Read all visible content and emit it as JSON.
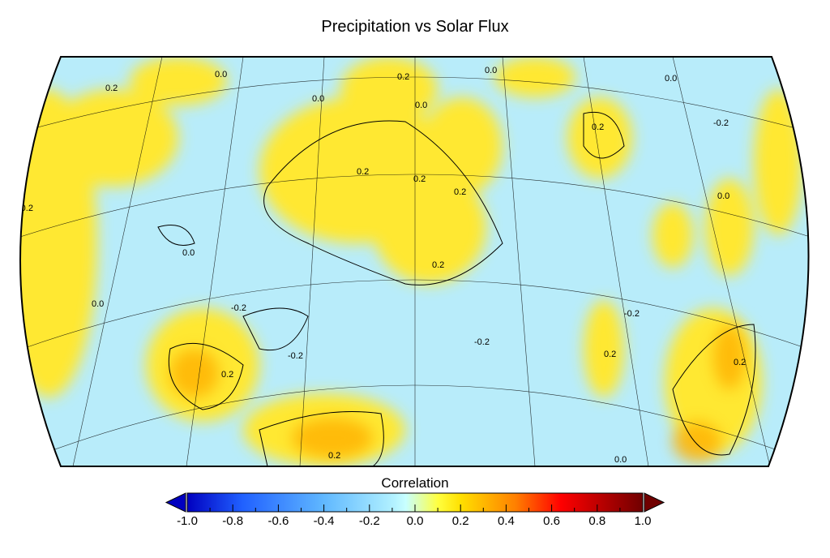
{
  "title": "Precipitation vs Solar Flux",
  "colorbar": {
    "label": "Correlation",
    "ticks": [
      "-1.0",
      "-0.8",
      "-0.6",
      "-0.4",
      "-0.2",
      "0.0",
      "0.2",
      "0.4",
      "0.6",
      "0.8",
      "1.0"
    ],
    "range": [
      -1.0,
      1.0
    ],
    "colors": [
      "#0000c0",
      "#2060ff",
      "#60b8ff",
      "#a0e8ff",
      "#c8ffff",
      "#ffff40",
      "#ffd000",
      "#ff8000",
      "#ff0000",
      "#c00000",
      "#700000"
    ]
  },
  "map": {
    "background_color": "#b8ecfa",
    "contour_labels": [
      "0.2",
      "0.0",
      "0.0",
      "0.2",
      "0.0",
      "0.0",
      "0.2",
      "0.2",
      "0.0",
      "0.2",
      "-0.2",
      "0.0",
      "0.2",
      "0.2",
      "-0.2",
      "0.2",
      "-0.2",
      "0.0",
      "0.0",
      "-0.2",
      "0.2",
      "-0.2",
      "-0.2",
      "0.2",
      "0.0",
      "-0.2",
      "0.2"
    ]
  }
}
